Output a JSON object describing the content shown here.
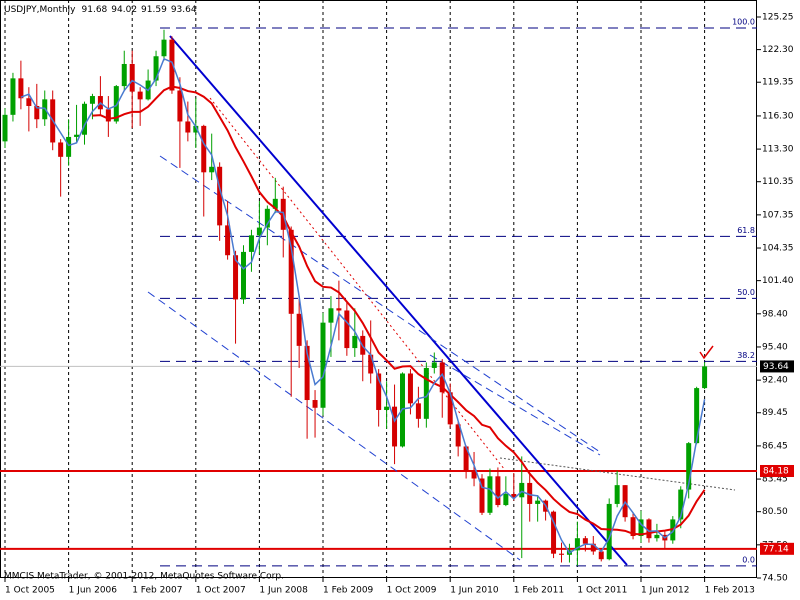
{
  "chart_data": {
    "type": "candlestick",
    "symbol": "USDJPY,Monthly",
    "footer": "MMCIS MetaTrader, © 2001-2012, MetaQuotes Software Corp.",
    "up_color": "#00a000",
    "down_color": "#d40000",
    "categories": [
      "1 Oct 2005",
      null,
      null,
      null,
      null,
      null,
      null,
      null,
      "1 Jun 2006",
      null,
      null,
      null,
      null,
      null,
      null,
      null,
      "1 Feb 2007",
      null,
      null,
      null,
      null,
      null,
      null,
      null,
      "1 Oct 2007",
      null,
      null,
      null,
      null,
      null,
      null,
      null,
      "1 Jun 2008",
      null,
      null,
      null,
      null,
      null,
      null,
      null,
      "1 Feb 2009",
      null,
      null,
      null,
      null,
      null,
      null,
      null,
      "1 Oct 2009",
      null,
      null,
      null,
      null,
      null,
      null,
      null,
      "1 Jun 2010",
      null,
      null,
      null,
      null,
      null,
      null,
      null,
      "1 Feb 2011",
      null,
      null,
      null,
      null,
      null,
      null,
      null,
      "1 Oct 2011",
      null,
      null,
      null,
      null,
      null,
      null,
      null,
      "1 Jun 2012",
      null,
      null,
      null,
      null,
      null,
      null,
      null,
      "1 Feb 2013"
    ],
    "open": [
      114.0,
      116.4,
      119.7,
      117.9,
      117.2,
      116.0,
      117.8,
      113.9,
      112.6,
      114.4,
      114.6,
      117.4,
      118.1,
      116.9,
      115.8,
      119.0,
      121.0,
      118.5,
      117.8,
      119.5,
      121.7,
      123.2,
      118.6,
      115.8,
      114.8,
      115.4,
      111.2,
      111.7,
      106.4,
      103.7,
      99.7,
      104.0,
      105.5,
      106.2,
      107.9,
      108.8,
      106.0,
      98.4,
      95.5,
      90.6,
      89.9,
      97.6,
      98.9,
      98.7,
      95.3,
      96.4,
      94.7,
      93.0,
      89.7,
      90.0,
      86.4,
      93.0,
      90.3,
      88.9,
      93.5,
      94.0,
      91.3,
      88.4,
      86.4,
      84.2,
      83.5,
      80.4,
      83.7,
      81.1,
      82.1,
      81.8,
      83.1,
      81.2,
      81.5,
      80.5,
      76.7,
      76.6,
      77.0,
      78.1,
      77.6,
      76.9,
      76.2,
      81.2,
      82.9,
      80.0,
      78.3,
      79.8,
      78.1,
      78.4,
      77.9,
      79.8,
      82.5,
      86.7,
      91.68
    ],
    "high": [
      117.0,
      120.2,
      121.3,
      118.9,
      119.2,
      118.6,
      118.6,
      114.2,
      116.0,
      117.3,
      117.6,
      118.3,
      119.9,
      118.1,
      119.1,
      122.2,
      122.2,
      118.9,
      120.5,
      122.2,
      124.1,
      123.5,
      119.8,
      117.6,
      117.9,
      115.5,
      114.7,
      112.1,
      108.6,
      104.1,
      104.6,
      106.0,
      108.6,
      108.2,
      110.7,
      109.9,
      106.3,
      100.0,
      96.0,
      91.5,
      98.5,
      100.0,
      101.4,
      99.5,
      98.9,
      96.9,
      97.8,
      93.4,
      92.3,
      92.0,
      93.1,
      93.4,
      91.8,
      94.0,
      94.9,
      94.3,
      92.1,
      88.6,
      86.5,
      85.9,
      83.9,
      84.4,
      84.5,
      83.7,
      84.0,
      85.5,
      84.0,
      82.0,
      81.6,
      80.6,
      77.7,
      77.6,
      79.6,
      78.3,
      78.3,
      77.1,
      81.7,
      84.2,
      82.9,
      80.4,
      80.6,
      79.9,
      79.4,
      78.7,
      80.1,
      82.8,
      86.8,
      91.8,
      94.02
    ],
    "low": [
      113.4,
      115.8,
      116.9,
      114.9,
      115.2,
      115.4,
      113.2,
      109.0,
      111.8,
      113.9,
      113.7,
      116.0,
      116.3,
      114.4,
      115.6,
      118.6,
      115.2,
      115.4,
      117.7,
      119.0,
      121.3,
      118.3,
      111.6,
      114.0,
      113.4,
      107.2,
      110.5,
      105.0,
      103.3,
      95.7,
      99.3,
      102.2,
      103.8,
      104.6,
      107.5,
      103.5,
      90.9,
      93.5,
      87.1,
      87.2,
      89.2,
      94.5,
      96.0,
      94.6,
      94.5,
      92.3,
      92.1,
      88.2,
      88.0,
      84.8,
      86.3,
      89.3,
      88.1,
      88.1,
      93.0,
      89.0,
      88.1,
      85.5,
      83.5,
      82.8,
      80.2,
      80.2,
      80.9,
      81.0,
      81.5,
      76.3,
      79.6,
      79.6,
      79.7,
      76.3,
      75.9,
      75.9,
      75.6,
      76.9,
      76.6,
      76.0,
      76.1,
      80.9,
      79.6,
      78.0,
      77.7,
      77.7,
      77.8,
      77.1,
      77.6,
      79.0,
      81.7,
      86.6,
      91.59
    ],
    "close": [
      116.4,
      119.7,
      117.9,
      117.2,
      116.0,
      117.8,
      113.9,
      112.6,
      114.4,
      114.6,
      117.4,
      118.1,
      116.9,
      115.8,
      119.0,
      121.0,
      118.5,
      117.8,
      119.5,
      121.7,
      123.2,
      118.6,
      115.8,
      114.8,
      115.4,
      111.2,
      111.7,
      106.4,
      103.7,
      99.7,
      104.0,
      105.5,
      106.2,
      107.9,
      108.8,
      106.0,
      98.4,
      95.5,
      90.6,
      89.9,
      97.6,
      98.9,
      98.7,
      95.3,
      96.4,
      94.7,
      93.0,
      89.7,
      90.0,
      86.4,
      93.0,
      90.3,
      88.9,
      93.5,
      94.0,
      91.3,
      88.4,
      86.4,
      84.2,
      83.5,
      80.4,
      83.7,
      81.1,
      82.1,
      81.8,
      83.1,
      81.2,
      81.5,
      80.5,
      76.7,
      76.6,
      77.0,
      78.1,
      77.6,
      76.9,
      76.2,
      81.2,
      82.9,
      80.0,
      78.3,
      79.8,
      78.1,
      78.4,
      77.9,
      79.8,
      82.5,
      86.7,
      91.68,
      93.64
    ],
    "ylim": [
      74.5,
      125.25
    ],
    "yticks": [
      125.25,
      {
        "value": 122.3,
        "label": "122.30"
      },
      119.35,
      {
        "value": 116.3,
        "label": "116.30"
      },
      {
        "value": 113.3,
        "label": "113.30"
      },
      110.35,
      107.35,
      104.35,
      {
        "value": 101.4,
        "label": "101.40"
      },
      {
        "value": 98.4,
        "label": "98.40"
      },
      {
        "value": 95.4,
        "label": "95.40"
      },
      {
        "value": 92.4,
        "label": "92.40"
      },
      89.45,
      86.45,
      83.45,
      {
        "value": 80.5,
        "label": "80.50"
      },
      {
        "value": 77.5,
        "label": "77.50"
      },
      {
        "value": 74.5,
        "label": "74.50"
      }
    ],
    "fib_levels": [
      {
        "label": "100.0",
        "price": 124.25
      },
      {
        "label": "61.8",
        "price": 105.4
      },
      {
        "label": "50.0",
        "price": 99.8
      },
      {
        "label": "38.2",
        "price": 94.1
      },
      {
        "label": "0.0",
        "price": 75.6
      }
    ],
    "levels": [
      84.18,
      77.14
    ],
    "level_color": "#e00000"
  }
}
